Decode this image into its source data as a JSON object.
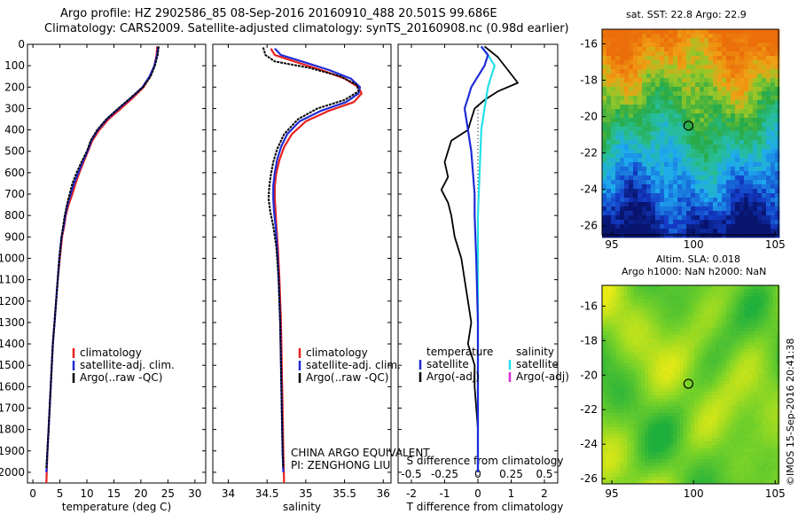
{
  "header": {
    "title_line1": "Argo profile: HZ 2902586_85 08-Sep-2016 20160910_488 20.501S 99.686E",
    "title_line2": "Climatology: CARS2009. Satellite-adjusted climatology: synTS_20160908.nc (0.98d earlier)"
  },
  "credit": "©IMOS 15-Sep-2016 20:41:38",
  "colors": {
    "climatology": "#e8211c",
    "satellite": "#1f2bd6",
    "argo": "#000000",
    "salinity_satellite": "#22e0e8",
    "salinity_argo": "#d42cd1"
  },
  "depth_axis": {
    "ylim": [
      0,
      2050
    ],
    "ticks": [
      0,
      100,
      200,
      300,
      400,
      500,
      600,
      700,
      800,
      900,
      1000,
      1100,
      1200,
      1300,
      1400,
      1500,
      1600,
      1700,
      1800,
      1900,
      2000
    ]
  },
  "chart_data": [
    {
      "type": "line",
      "panel": "temperature",
      "xlabel": "temperature (deg C)",
      "xlim": [
        -1,
        32
      ],
      "xticks": [
        0,
        5,
        10,
        15,
        20,
        25,
        30
      ],
      "legend": [
        "climatology",
        "satellite-adj. clim.",
        "Argo(..raw -QC)"
      ],
      "series": [
        {
          "name": "climatology",
          "points": [
            [
              23,
              10
            ],
            [
              22.9,
              50
            ],
            [
              22.5,
              100
            ],
            [
              21.7,
              150
            ],
            [
              20.5,
              200
            ],
            [
              18.5,
              250
            ],
            [
              16.3,
              300
            ],
            [
              14,
              350
            ],
            [
              12.3,
              400
            ],
            [
              11,
              450
            ],
            [
              10.2,
              500
            ],
            [
              9.4,
              550
            ],
            [
              8.6,
              600
            ],
            [
              7.9,
              650
            ],
            [
              7.3,
              700
            ],
            [
              6.6,
              750
            ],
            [
              6.1,
              800
            ],
            [
              5.8,
              850
            ],
            [
              5.4,
              900
            ],
            [
              5,
              1000
            ],
            [
              4.6,
              1100
            ],
            [
              4.3,
              1200
            ],
            [
              4,
              1300
            ],
            [
              3.7,
              1400
            ],
            [
              3.5,
              1500
            ],
            [
              3.3,
              1600
            ],
            [
              3.1,
              1700
            ],
            [
              2.9,
              1800
            ],
            [
              2.7,
              1900
            ],
            [
              2.5,
              2050
            ]
          ]
        },
        {
          "name": "satellite-adj. clim.",
          "points": [
            [
              23.2,
              10
            ],
            [
              23,
              50
            ],
            [
              22.5,
              100
            ],
            [
              21.6,
              150
            ],
            [
              20.3,
              200
            ],
            [
              18.2,
              250
            ],
            [
              15.9,
              300
            ],
            [
              13.7,
              350
            ],
            [
              12,
              400
            ],
            [
              10.8,
              450
            ],
            [
              10.1,
              500
            ],
            [
              9.2,
              550
            ],
            [
              8.4,
              600
            ],
            [
              7.6,
              650
            ],
            [
              7,
              700
            ],
            [
              6.4,
              750
            ],
            [
              6,
              800
            ],
            [
              5.7,
              850
            ],
            [
              5.3,
              900
            ],
            [
              4.9,
              1000
            ],
            [
              4.6,
              1100
            ],
            [
              4.3,
              1200
            ],
            [
              4,
              1300
            ],
            [
              3.7,
              1400
            ],
            [
              3.5,
              1500
            ],
            [
              3.3,
              1600
            ],
            [
              3.1,
              1700
            ],
            [
              2.9,
              1800
            ],
            [
              2.7,
              1900
            ],
            [
              2.5,
              2000
            ]
          ]
        },
        {
          "name": "Argo(..raw -QC)",
          "points": [
            [
              23.3,
              10
            ],
            [
              23.1,
              50
            ],
            [
              22.6,
              100
            ],
            [
              21.8,
              150
            ],
            [
              20.4,
              200
            ],
            [
              18.1,
              250
            ],
            [
              15.8,
              300
            ],
            [
              13.6,
              350
            ],
            [
              11.9,
              400
            ],
            [
              10.7,
              450
            ],
            [
              10,
              500
            ],
            [
              9,
              550
            ],
            [
              8.1,
              600
            ],
            [
              7.3,
              650
            ],
            [
              6.8,
              700
            ],
            [
              6.3,
              750
            ],
            [
              5.9,
              800
            ],
            [
              5.6,
              850
            ],
            [
              5.3,
              900
            ],
            [
              4.9,
              1000
            ],
            [
              4.6,
              1100
            ],
            [
              4.3,
              1200
            ],
            [
              4,
              1300
            ],
            [
              3.7,
              1400
            ],
            [
              3.5,
              1500
            ],
            [
              3.3,
              1600
            ],
            [
              3.1,
              1700
            ],
            [
              2.9,
              1800
            ],
            [
              2.7,
              1900
            ],
            [
              2.5,
              1980
            ]
          ]
        }
      ]
    },
    {
      "type": "line",
      "panel": "salinity",
      "xlabel": "salinity",
      "xlim": [
        33.8,
        36.1
      ],
      "xticks": [
        34,
        34.5,
        35,
        35.5,
        36
      ],
      "legend": [
        "climatology",
        "satellite-adj. clim.",
        "Argo(..raw -QC)"
      ],
      "annotation": [
        "CHINA ARGO EQUIVALENT",
        "PI: ZENGHONG LIU"
      ],
      "series": [
        {
          "name": "climatology",
          "points": [
            [
              34.55,
              20
            ],
            [
              34.6,
              50
            ],
            [
              34.85,
              80
            ],
            [
              35.2,
              120
            ],
            [
              35.5,
              160
            ],
            [
              35.68,
              200
            ],
            [
              35.72,
              230
            ],
            [
              35.62,
              270
            ],
            [
              35.3,
              310
            ],
            [
              35.0,
              360
            ],
            [
              34.82,
              420
            ],
            [
              34.72,
              480
            ],
            [
              34.66,
              540
            ],
            [
              34.62,
              600
            ],
            [
              34.6,
              660
            ],
            [
              34.6,
              720
            ],
            [
              34.61,
              780
            ],
            [
              34.62,
              850
            ],
            [
              34.64,
              950
            ],
            [
              34.66,
              1100
            ],
            [
              34.68,
              1300
            ],
            [
              34.69,
              1500
            ],
            [
              34.7,
              1700
            ],
            [
              34.71,
              1900
            ],
            [
              34.72,
              2050
            ]
          ]
        },
        {
          "name": "satellite-adj. clim.",
          "points": [
            [
              34.6,
              20
            ],
            [
              34.68,
              50
            ],
            [
              34.95,
              80
            ],
            [
              35.3,
              120
            ],
            [
              35.58,
              160
            ],
            [
              35.7,
              200
            ],
            [
              35.68,
              230
            ],
            [
              35.52,
              270
            ],
            [
              35.2,
              310
            ],
            [
              34.92,
              360
            ],
            [
              34.76,
              420
            ],
            [
              34.68,
              480
            ],
            [
              34.63,
              540
            ],
            [
              34.6,
              600
            ],
            [
              34.58,
              660
            ],
            [
              34.58,
              720
            ],
            [
              34.59,
              780
            ],
            [
              34.61,
              850
            ],
            [
              34.63,
              950
            ],
            [
              34.65,
              1100
            ],
            [
              34.67,
              1300
            ],
            [
              34.68,
              1500
            ],
            [
              34.69,
              1700
            ],
            [
              34.7,
              1900
            ],
            [
              34.71,
              2000
            ]
          ]
        },
        {
          "name": "Argo(..raw -QC)",
          "points": [
            [
              34.45,
              15
            ],
            [
              34.48,
              50
            ],
            [
              34.6,
              80
            ],
            [
              35.05,
              110
            ],
            [
              35.45,
              150
            ],
            [
              35.66,
              190
            ],
            [
              35.68,
              220
            ],
            [
              35.5,
              260
            ],
            [
              35.15,
              300
            ],
            [
              34.9,
              350
            ],
            [
              34.72,
              420
            ],
            [
              34.63,
              490
            ],
            [
              34.58,
              550
            ],
            [
              34.55,
              610
            ],
            [
              34.53,
              660
            ],
            [
              34.52,
              720
            ],
            [
              34.54,
              780
            ],
            [
              34.58,
              850
            ],
            [
              34.62,
              950
            ],
            [
              34.65,
              1100
            ],
            [
              34.67,
              1300
            ],
            [
              34.68,
              1500
            ],
            [
              34.69,
              1700
            ],
            [
              34.7,
              1900
            ],
            [
              34.71,
              1980
            ]
          ]
        }
      ]
    },
    {
      "type": "line",
      "panel": "difference",
      "xlabel": "T difference from climatology",
      "xlabel_top": "S difference from climatology",
      "xlim_T": [
        -2.4,
        2.4
      ],
      "xticks_T": [
        -2,
        -1,
        0,
        1,
        2
      ],
      "xlim_S": [
        -0.6,
        0.6
      ],
      "xticks_S": [
        -0.5,
        -0.25,
        0,
        0.25,
        0.5
      ],
      "xticklabels_S": [
        "-0.5",
        "-0.25",
        "0",
        "0.25",
        "0.5"
      ],
      "legend_temperature": [
        "temperature",
        "satellite",
        "Argo(-adj)"
      ],
      "legend_salinity": [
        "salinity",
        "satellite",
        "Argo(-adj)"
      ],
      "series": [
        {
          "name": "satellite",
          "points": [
            [
              0.1,
              10
            ],
            [
              0.3,
              50
            ],
            [
              0.2,
              100
            ],
            [
              0,
              150
            ],
            [
              -0.2,
              200
            ],
            [
              -0.3,
              250
            ],
            [
              -0.4,
              300
            ],
            [
              -0.3,
              400
            ],
            [
              -0.2,
              500
            ],
            [
              -0.15,
              600
            ],
            [
              -0.1,
              700
            ],
            [
              -0.1,
              800
            ],
            [
              -0.05,
              1000
            ],
            [
              0,
              1300
            ],
            [
              0,
              1600
            ],
            [
              0,
              2000
            ]
          ]
        },
        {
          "name": "satellite",
          "points": [
            [
              0.1,
              10
            ],
            [
              0.3,
              50
            ],
            [
              0.5,
              100
            ],
            [
              0.4,
              150
            ],
            [
              0.3,
              200
            ],
            [
              0.2,
              300
            ],
            [
              0.1,
              400
            ],
            [
              0.05,
              600
            ],
            [
              0,
              800
            ],
            [
              0,
              1200
            ],
            [
              0,
              1600
            ],
            [
              0,
              2000
            ]
          ]
        },
        {
          "name": "Argo(-adj)",
          "points": [
            [
              0.2,
              10
            ],
            [
              0.6,
              60
            ],
            [
              0.9,
              120
            ],
            [
              1.2,
              180
            ],
            [
              0.6,
              220
            ],
            [
              0.2,
              260
            ],
            [
              -0.1,
              300
            ],
            [
              -0.2,
              350
            ],
            [
              -0.3,
              400
            ],
            [
              -0.8,
              450
            ],
            [
              -1.0,
              550
            ],
            [
              -0.9,
              620
            ],
            [
              -1.1,
              680
            ],
            [
              -0.9,
              740
            ],
            [
              -0.8,
              800
            ],
            [
              -0.7,
              900
            ],
            [
              -0.5,
              1000
            ],
            [
              -0.4,
              1100
            ],
            [
              -0.3,
              1200
            ],
            [
              -0.2,
              1300
            ],
            [
              -0.3,
              1400
            ],
            [
              -0.1,
              1500
            ],
            [
              -0.1,
              1600
            ],
            [
              0,
              1800
            ],
            [
              0,
              1950
            ]
          ]
        }
      ]
    },
    {
      "type": "heatmap",
      "panel": "sst-map",
      "title": "sat. SST: 22.8 Argo: 22.9",
      "xlim": [
        94.4,
        105.2
      ],
      "ylim": [
        -26.5,
        -15.2
      ],
      "xticks": [
        95,
        100,
        105
      ],
      "yticks": [
        -16,
        -18,
        -20,
        -22,
        -24,
        -26
      ],
      "marker": [
        99.686,
        -20.501
      ]
    },
    {
      "type": "heatmap",
      "panel": "sla-map",
      "title": "Altim. SLA: 0.018",
      "subtitle": "Argo h1000: NaN h2000: NaN",
      "xlim": [
        94.4,
        105.2
      ],
      "ylim": [
        -26.3,
        -14.8
      ],
      "xticks": [
        95,
        100,
        105
      ],
      "yticks": [
        -16,
        -18,
        -20,
        -22,
        -24,
        -26
      ],
      "marker": [
        99.686,
        -20.501
      ]
    }
  ]
}
